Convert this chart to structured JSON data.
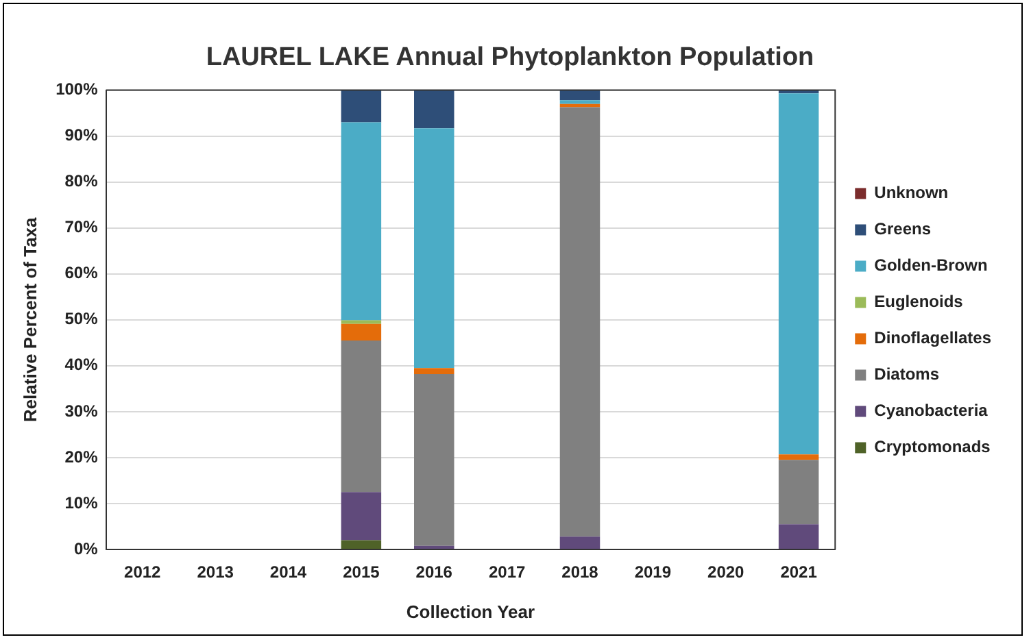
{
  "chart_data": {
    "type": "bar",
    "stacked": true,
    "title": "LAUREL LAKE Annual Phytoplankton Population",
    "xlabel": "Collection Year",
    "ylabel": "Relative Percent of Taxa",
    "categories": [
      "2012",
      "2013",
      "2014",
      "2015",
      "2016",
      "2017",
      "2018",
      "2019",
      "2020",
      "2021"
    ],
    "series": [
      {
        "name": "Cryptomonads",
        "color": "#4f6228",
        "values": [
          null,
          null,
          null,
          2,
          0,
          null,
          0,
          null,
          null,
          0
        ]
      },
      {
        "name": "Cyanobacteria",
        "color": "#604a7b",
        "values": [
          null,
          null,
          null,
          10.5,
          0.8,
          null,
          2.8,
          null,
          null,
          5.5
        ]
      },
      {
        "name": "Diatoms",
        "color": "#808080",
        "values": [
          null,
          null,
          null,
          33,
          37.4,
          null,
          93.5,
          null,
          null,
          14
        ]
      },
      {
        "name": "Dinoflagellates",
        "color": "#e46c0a",
        "values": [
          null,
          null,
          null,
          3.6,
          1.3,
          null,
          0.7,
          null,
          null,
          1.2
        ]
      },
      {
        "name": "Euglenoids",
        "color": "#9bbb59",
        "values": [
          null,
          null,
          null,
          0.8,
          0,
          null,
          0,
          null,
          null,
          0
        ]
      },
      {
        "name": "Golden-Brown",
        "color": "#4bacc6",
        "values": [
          null,
          null,
          null,
          43.1,
          52.2,
          null,
          0.8,
          null,
          null,
          78.6
        ]
      },
      {
        "name": "Greens",
        "color": "#2e4e78",
        "values": [
          null,
          null,
          null,
          7,
          8.3,
          null,
          2.2,
          null,
          null,
          0.7
        ]
      },
      {
        "name": "Unknown",
        "color": "#7b2c2c",
        "values": [
          null,
          null,
          null,
          0,
          0,
          null,
          0,
          null,
          null,
          0
        ]
      }
    ],
    "ylim": [
      0,
      100
    ],
    "yticks": [
      {
        "value": 0,
        "label": "0%"
      },
      {
        "value": 10,
        "label": "10%"
      },
      {
        "value": 20,
        "label": "20%"
      },
      {
        "value": 30,
        "label": "30%"
      },
      {
        "value": 40,
        "label": "40%"
      },
      {
        "value": 50,
        "label": "50%"
      },
      {
        "value": 60,
        "label": "60%"
      },
      {
        "value": 70,
        "label": "70%"
      },
      {
        "value": 80,
        "label": "80%"
      },
      {
        "value": 90,
        "label": "90%"
      },
      {
        "value": 100,
        "label": "100%"
      }
    ],
    "grid": "y",
    "legend": "right"
  }
}
